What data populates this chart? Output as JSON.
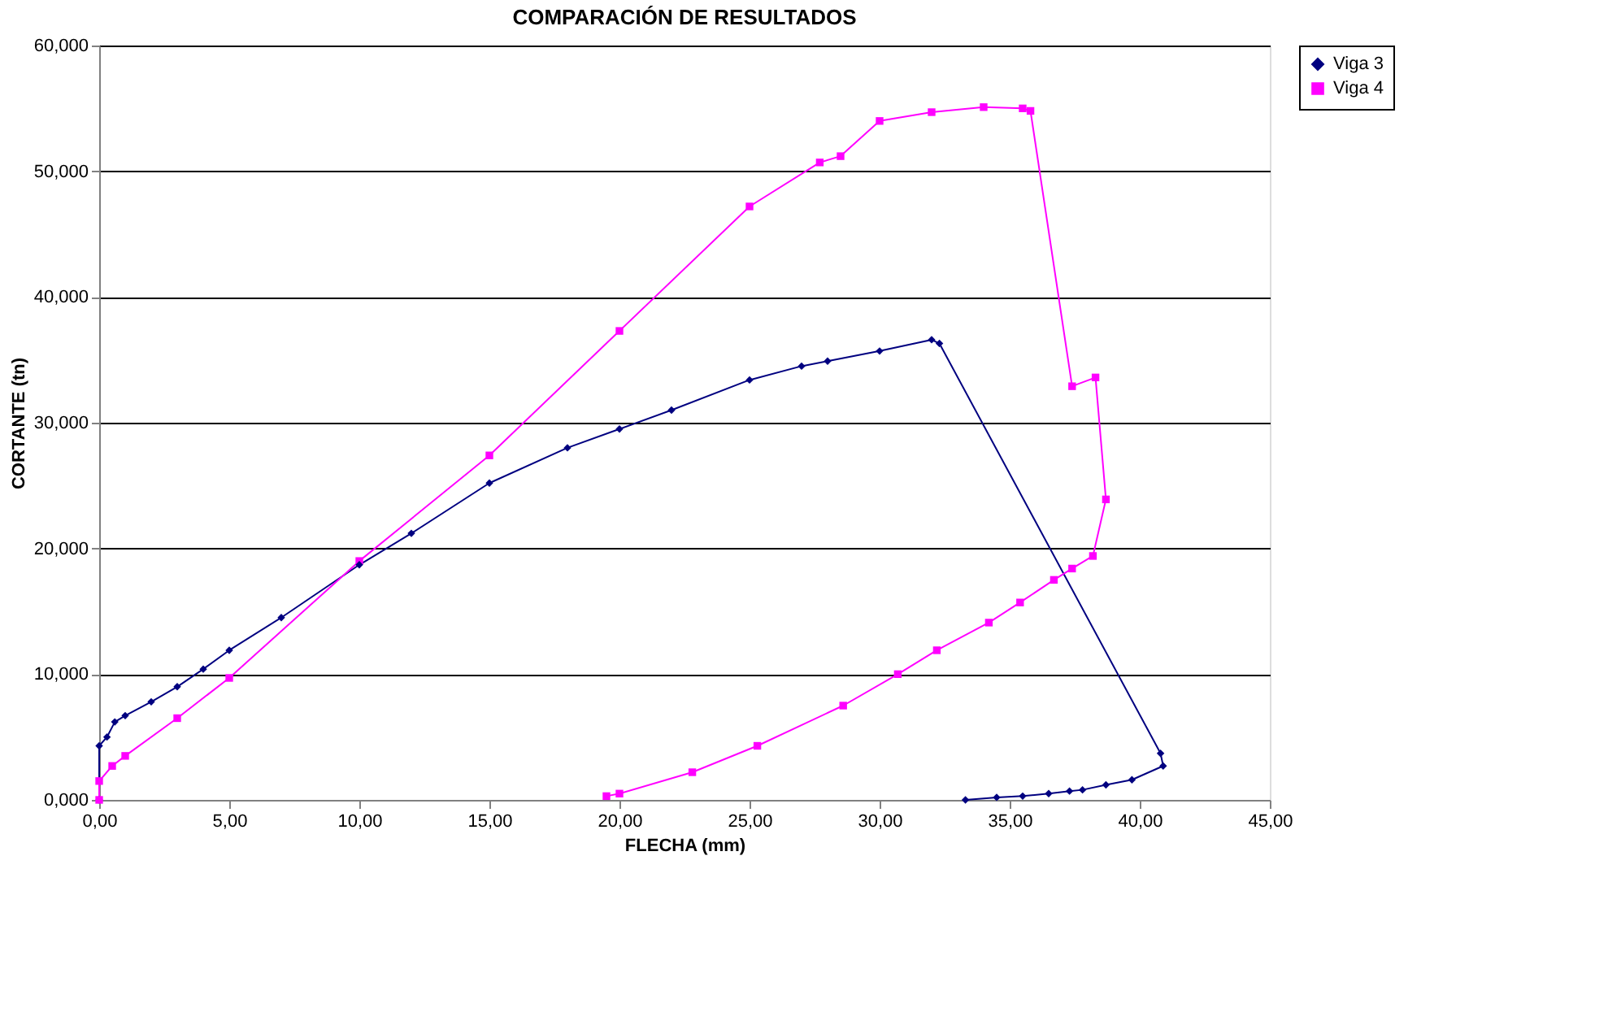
{
  "chart_data": {
    "type": "line",
    "title": "COMPARACIÓN DE RESULTADOS",
    "xlabel": "FLECHA (mm)",
    "ylabel": "CORTANTE (tn)",
    "xlim": [
      0,
      45
    ],
    "ylim": [
      0,
      60
    ],
    "xticks": [
      {
        "value": 0,
        "label": "0,00"
      },
      {
        "value": 5,
        "label": "5,00"
      },
      {
        "value": 10,
        "label": "10,00"
      },
      {
        "value": 15,
        "label": "15,00"
      },
      {
        "value": 20,
        "label": "20,00"
      },
      {
        "value": 25,
        "label": "25,00"
      },
      {
        "value": 30,
        "label": "30,00"
      },
      {
        "value": 35,
        "label": "35,00"
      },
      {
        "value": 40,
        "label": "40,00"
      },
      {
        "value": 45,
        "label": "45,00"
      }
    ],
    "yticks": [
      {
        "value": 0,
        "label": "0,000"
      },
      {
        "value": 10,
        "label": "10,000"
      },
      {
        "value": 20,
        "label": "20,000"
      },
      {
        "value": 30,
        "label": "30,000"
      },
      {
        "value": 40,
        "label": "40,000"
      },
      {
        "value": 50,
        "label": "50,000"
      },
      {
        "value": 60,
        "label": "60,000"
      }
    ],
    "grid": "y",
    "legend": "right",
    "series": [
      {
        "name": "Viga 3",
        "color": "#000080",
        "marker": "diamond",
        "x": [
          0,
          0,
          0.3,
          0.6,
          1,
          2,
          3,
          4,
          5,
          7,
          10,
          12,
          15,
          18,
          20,
          22,
          25,
          27,
          28,
          30,
          32,
          32.3,
          40.8,
          40.9,
          39.7,
          38.7,
          37.8,
          37.3,
          36.5,
          35.5,
          34.5,
          33.3
        ],
        "values": [
          0,
          4.3,
          5,
          6.2,
          6.7,
          7.8,
          9,
          10.4,
          11.9,
          14.5,
          18.7,
          21.2,
          25.2,
          28,
          29.5,
          31,
          33.4,
          34.5,
          34.9,
          35.7,
          36.6,
          36.3,
          3.7,
          2.7,
          1.6,
          1.2,
          0.8,
          0.7,
          0.5,
          0.3,
          0.2,
          0
        ]
      },
      {
        "name": "Viga 4",
        "color": "#ff00ff",
        "marker": "square",
        "x": [
          0,
          0,
          0.5,
          1,
          3,
          5,
          10,
          15,
          20,
          25,
          27.7,
          28.5,
          30,
          32,
          34,
          35.5,
          35.8,
          37.4,
          38.3,
          38.7,
          38.2,
          37.4,
          36.7,
          35.4,
          34.2,
          32.2,
          30.7,
          28.6,
          25.3,
          22.8,
          20,
          19.5
        ],
        "values": [
          0,
          1.5,
          2.7,
          3.5,
          6.5,
          9.7,
          19,
          27.4,
          37.3,
          47.2,
          50.7,
          51.2,
          54,
          54.7,
          55.1,
          55,
          54.8,
          32.9,
          33.6,
          23.9,
          19.4,
          18.4,
          17.5,
          15.7,
          14.1,
          11.9,
          10,
          7.5,
          4.3,
          2.2,
          0.5,
          0.3
        ]
      }
    ]
  }
}
